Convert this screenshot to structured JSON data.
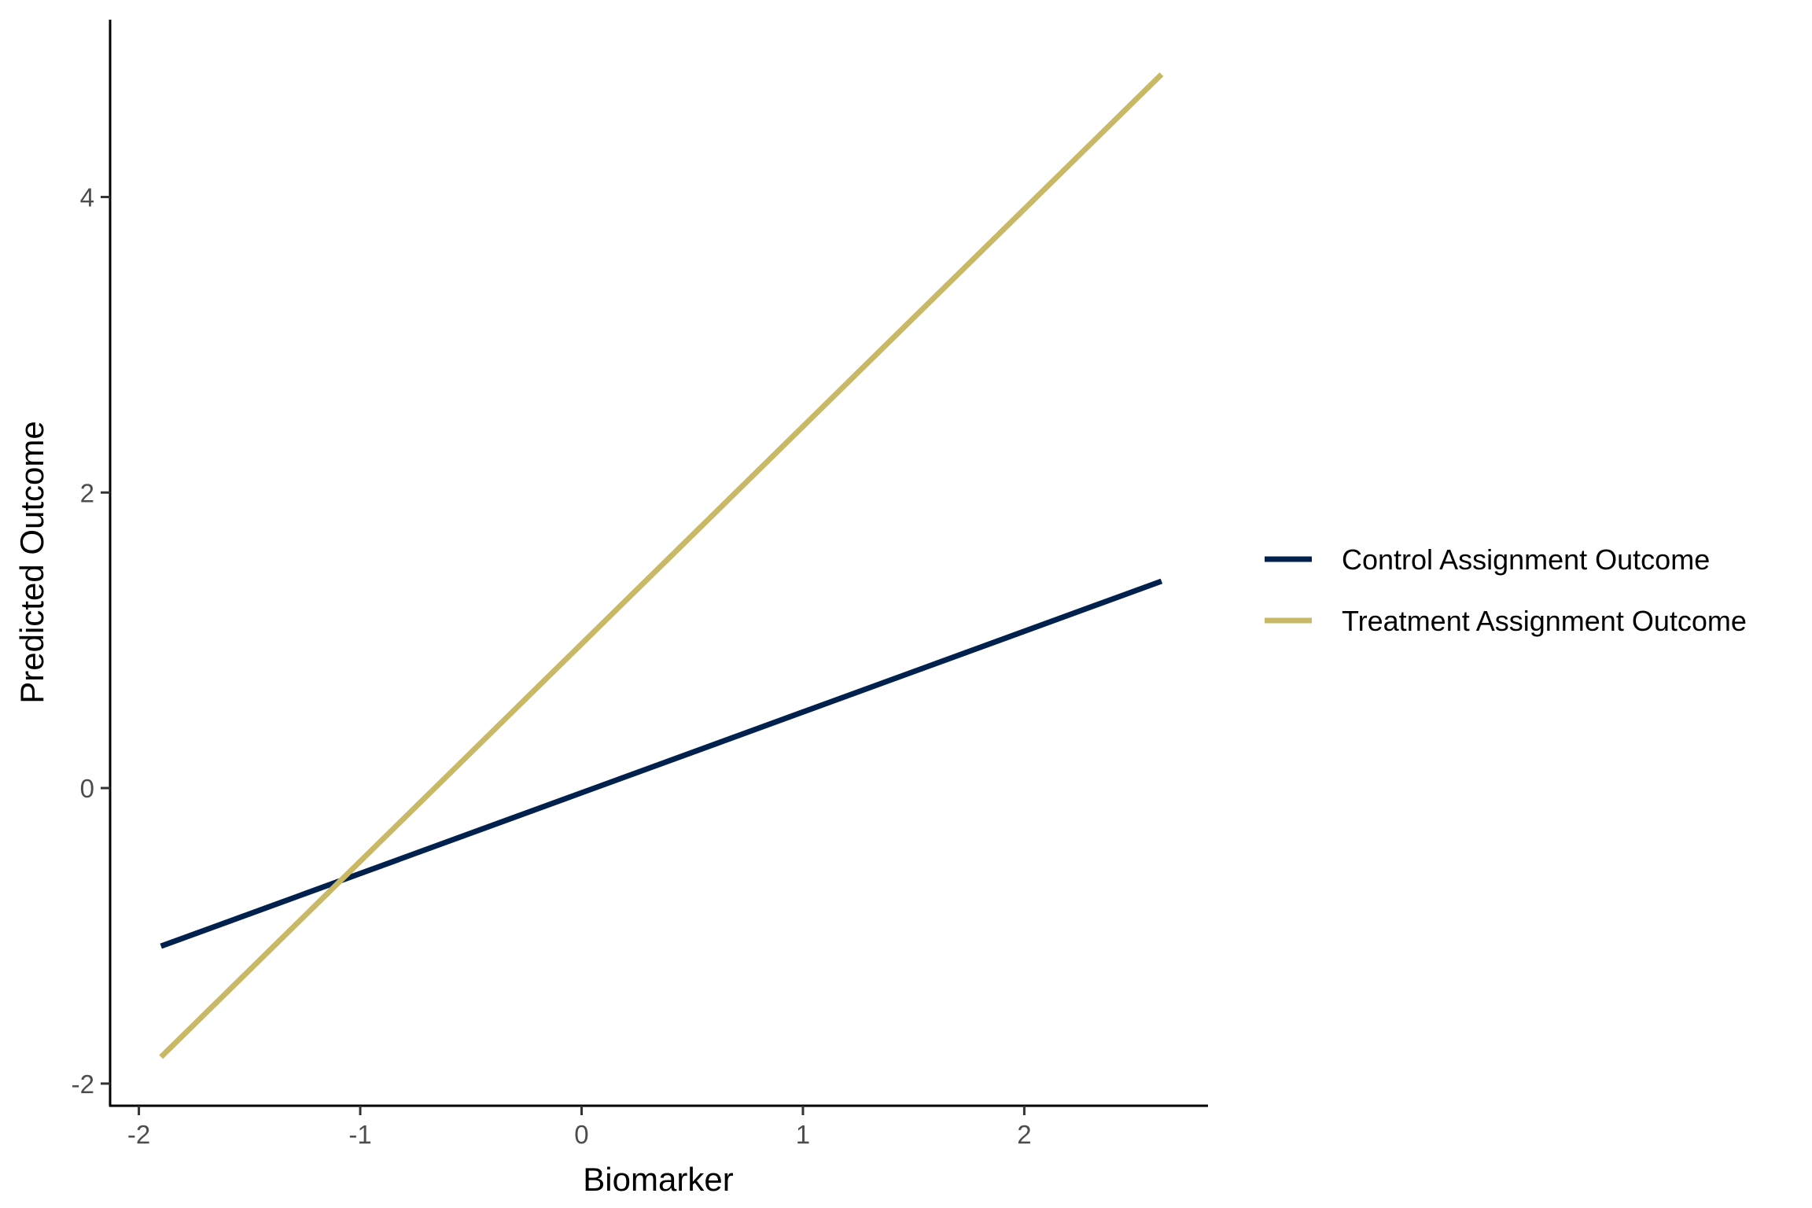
{
  "chart_data": {
    "type": "line",
    "title": "",
    "xlabel": "Biomarker",
    "ylabel": "Predicted Outcome",
    "xlim": [
      -2.13,
      2.83
    ],
    "ylim": [
      -2.15,
      5.2
    ],
    "xticks": [
      -2,
      -1,
      0,
      1,
      2
    ],
    "xtick_labels": [
      "-2",
      "-1",
      "0",
      "1",
      "2"
    ],
    "yticks": [
      -2,
      0,
      2,
      4
    ],
    "ytick_labels": [
      "-2",
      "0",
      "2",
      "4"
    ],
    "grid": false,
    "legend_position": "right",
    "series": [
      {
        "name": "Control Assignment Outcome",
        "color": "#00204D",
        "x": [
          -1.9,
          2.62
        ],
        "y": [
          -1.07,
          1.4
        ]
      },
      {
        "name": "Treatment Assignment Outcome",
        "color": "#C9B866",
        "x": [
          -1.9,
          2.62
        ],
        "y": [
          -1.82,
          4.83
        ]
      }
    ]
  }
}
